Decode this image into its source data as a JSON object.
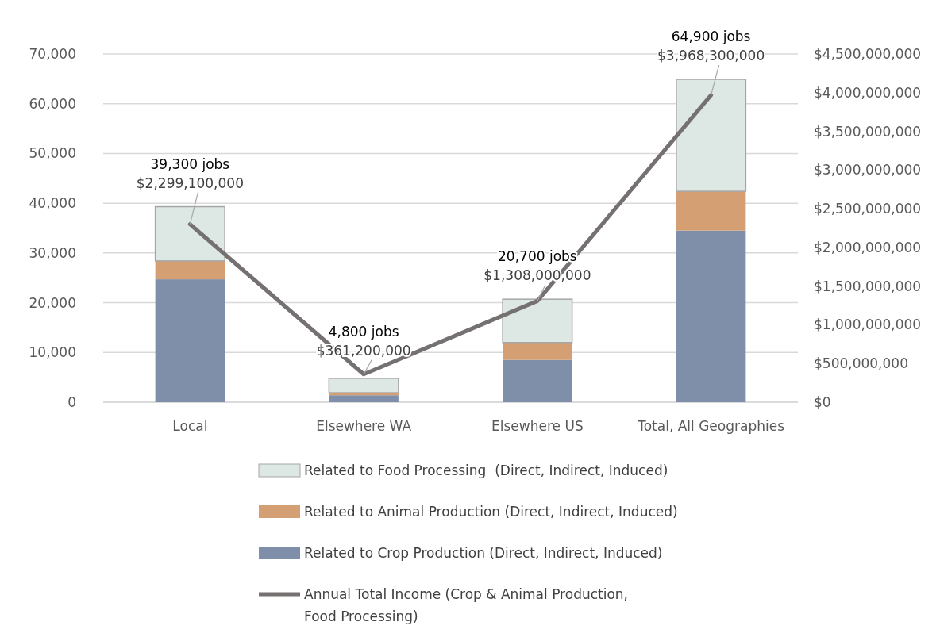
{
  "chart_data": {
    "type": "bar",
    "stacked": true,
    "categories": [
      "Local",
      "Elsewhere WA",
      "Elsewhere US",
      "Total, All Geographies"
    ],
    "series": [
      {
        "name": "Related to Crop Production (Direct, Indirect, Induced)",
        "color": "#7f8ea9",
        "values": [
          24700,
          1400,
          8500,
          34500
        ]
      },
      {
        "name": "Related to Animal Production (Direct, Indirect, Induced)",
        "color": "#d4a073",
        "values": [
          3700,
          500,
          3500,
          7900
        ]
      },
      {
        "name": "Related to Food Processing  (Direct, Indirect, Induced)",
        "color": "#dde8e5",
        "values": [
          10900,
          2900,
          8700,
          22500
        ]
      },
      {
        "name": "Annual Total Income (Crop & Animal Production, Food Processing)",
        "type": "line",
        "axis": "y2",
        "color": "#767171",
        "values": [
          2299100000,
          361200000,
          1308000000,
          3968300000
        ],
        "value_labels": [
          "$2,299,100,000",
          "$361,200,000",
          "$1,308,000,000",
          "$3,968,300,000"
        ]
      }
    ],
    "totals": [
      "39,300 jobs",
      "4,800 jobs",
      "20,700 jobs",
      "64,900 jobs"
    ],
    "ylim": [
      0,
      70000
    ],
    "yticks": [
      {
        "value": 0,
        "label": "0"
      },
      {
        "value": 10000,
        "label": "10,000"
      },
      {
        "value": 20000,
        "label": "20,000"
      },
      {
        "value": 30000,
        "label": "30,000"
      },
      {
        "value": 40000,
        "label": "40,000"
      },
      {
        "value": 50000,
        "label": "50,000"
      },
      {
        "value": 60000,
        "label": "60,000"
      },
      {
        "value": 70000,
        "label": "70,000"
      }
    ],
    "y2lim": [
      0,
      4500000000
    ],
    "y2ticks": [
      {
        "value": 0,
        "label": "$0"
      },
      {
        "value": 500000000,
        "label": "$500,000,000"
      },
      {
        "value": 1000000000,
        "label": "$1,000,000,000"
      },
      {
        "value": 1500000000,
        "label": "$1,500,000,000"
      },
      {
        "value": 2000000000,
        "label": "$2,000,000,000"
      },
      {
        "value": 2500000000,
        "label": "$2,500,000,000"
      },
      {
        "value": 3000000000,
        "label": "$3,000,000,000"
      },
      {
        "value": 3500000000,
        "label": "$3,500,000,000"
      },
      {
        "value": 4000000000,
        "label": "$4,000,000,000"
      },
      {
        "value": 4500000000,
        "label": "$4,500,000,000"
      }
    ],
    "grid": "y",
    "legend": "bottom",
    "line_style": "solid",
    "marker": "none"
  }
}
